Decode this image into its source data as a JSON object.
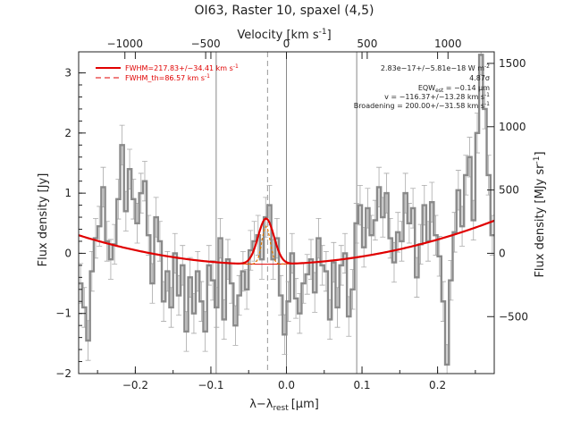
{
  "chart_data": {
    "type": "line",
    "title": "OI63, Raster 10, spaxel (4,5)",
    "xlabel": "λ−λ",
    "xlabel_sub": "rest",
    "xlabel_unit": "[μm]",
    "ylabel": "Flux density [Jy]",
    "top_label": "Velocity [km s",
    "top_label_sup": "-1",
    "top_label_end": "]",
    "right_label": "Flux density [MJy sr",
    "right_label_sup": "-1",
    "right_label_end": "]",
    "xlim": [
      -0.275,
      0.275
    ],
    "ylim": [
      -2.0,
      3.35
    ],
    "x_ticks": [
      -0.2,
      -0.1,
      0.0,
      0.1,
      0.2
    ],
    "x_tick_labels": [
      "−0.2",
      "−0.1",
      "0.0",
      "0.1",
      "0.2"
    ],
    "y_ticks": [
      -2,
      -1,
      0,
      1,
      2,
      3
    ],
    "y_tick_labels": [
      "−2",
      "−1",
      "0",
      "1",
      "2",
      "3"
    ],
    "top_ticks_x": [
      -0.2138,
      -0.1069,
      0.0,
      0.1069,
      0.2138
    ],
    "top_tick_labels": [
      "−1000",
      "−500",
      "0",
      "500",
      "1000"
    ],
    "right_ticks_y": [
      -1.053,
      0,
      1.053,
      2.105,
      3.158
    ],
    "right_tick_labels": [
      "−500",
      "0",
      "500",
      "1000",
      "1500"
    ],
    "vlines_solid": [
      -0.093,
      0.0,
      0.093
    ],
    "vline_dashed": -0.025,
    "legend": [
      {
        "label": "FWHM=217.83+/−34.41 km s",
        "sup": "-1",
        "style": "solid"
      },
      {
        "label": "FWHM_th=86.57 km s",
        "sup": "-1",
        "style": "dashed"
      }
    ],
    "annotations": [
      {
        "text": "2.83e−17+/−5.81e−18 W m",
        "sup": "-2"
      },
      {
        "text": "4.87σ"
      },
      {
        "text": "EQW",
        "sub": "est",
        "end": " = −0.14 μm"
      },
      {
        "text": "v = −116.37+/−13.28 km s",
        "sup": "-1"
      },
      {
        "text": "Broadening = 200.00+/−31.58 km s",
        "sup": "-1"
      }
    ],
    "fit": {
      "baseline_quad": [
        -0.1758,
        0.44,
        7.9
      ],
      "gauss_amp": 0.76,
      "gauss_center": -0.027,
      "gauss_sigma": 0.0105,
      "narrow_amp": 0.63,
      "narrow_sigma": 0.0055
    },
    "series": [
      {
        "name": "",
        "x": [
          -0.275,
          -0.27,
          -0.265,
          -0.26,
          -0.255,
          -0.25,
          -0.245,
          -0.24,
          -0.235,
          -0.23,
          -0.225,
          -0.22,
          -0.215,
          -0.21,
          -0.205,
          -0.2,
          -0.195,
          -0.19,
          -0.185,
          -0.18,
          -0.175,
          -0.17,
          -0.165,
          -0.16,
          -0.155,
          -0.15,
          -0.145,
          -0.14,
          -0.135,
          -0.13,
          -0.125,
          -0.12,
          -0.115,
          -0.11,
          -0.105,
          -0.1,
          -0.095,
          -0.09,
          -0.085,
          -0.08,
          -0.075,
          -0.07,
          -0.065,
          -0.06,
          -0.055,
          -0.05,
          -0.045,
          -0.04,
          -0.035,
          -0.03,
          -0.025,
          -0.02,
          -0.015,
          -0.01,
          -0.005,
          0.0,
          0.005,
          0.01,
          0.015,
          0.02,
          0.025,
          0.03,
          0.035,
          0.04,
          0.045,
          0.05,
          0.055,
          0.06,
          0.065,
          0.07,
          0.075,
          0.08,
          0.085,
          0.09,
          0.095,
          0.1,
          0.105,
          0.11,
          0.115,
          0.12,
          0.125,
          0.13,
          0.135,
          0.14,
          0.145,
          0.15,
          0.155,
          0.16,
          0.165,
          0.17,
          0.175,
          0.18,
          0.185,
          0.19,
          0.195,
          0.2,
          0.205,
          0.21,
          0.215,
          0.22,
          0.225,
          0.23,
          0.235,
          0.24,
          0.245,
          0.25,
          0.255,
          0.26,
          0.265,
          0.27
        ],
        "y": [
          -0.5,
          -0.9,
          -1.45,
          -0.3,
          0.25,
          0.45,
          1.1,
          0.2,
          -0.1,
          0.15,
          0.9,
          1.8,
          0.7,
          1.4,
          0.9,
          0.5,
          1.0,
          1.2,
          0.3,
          -0.5,
          0.6,
          0.2,
          -0.8,
          -0.3,
          -0.9,
          0.0,
          -0.7,
          -0.2,
          -1.3,
          -0.4,
          -1.0,
          -0.3,
          -0.8,
          -1.3,
          -0.2,
          -0.45,
          -0.9,
          0.25,
          -1.1,
          -0.1,
          -0.5,
          -1.2,
          -0.7,
          -0.3,
          -0.6,
          0.05,
          0.2,
          0.3,
          -0.1,
          0.6,
          0.8,
          -0.1,
          0.25,
          -0.7,
          -1.35,
          -0.8,
          0.0,
          -0.75,
          -1.0,
          -0.5,
          -0.35,
          -0.1,
          -0.65,
          0.25,
          -0.2,
          -0.3,
          -1.1,
          -0.15,
          -0.9,
          -0.2,
          0.0,
          -1.05,
          -0.6,
          0.5,
          0.8,
          0.1,
          0.75,
          0.3,
          0.55,
          1.1,
          0.6,
          1.0,
          0.25,
          -0.15,
          0.35,
          0.2,
          1.0,
          0.5,
          0.75,
          -0.4,
          0.15,
          0.8,
          0.2,
          0.85,
          0.3,
          -0.05,
          -0.8,
          -1.85,
          -0.45,
          0.35,
          1.05,
          0.45,
          1.3,
          1.6,
          0.55,
          2.0,
          3.3,
          2.4,
          1.3,
          0.3
        ],
        "yerr": 0.33
      }
    ]
  }
}
